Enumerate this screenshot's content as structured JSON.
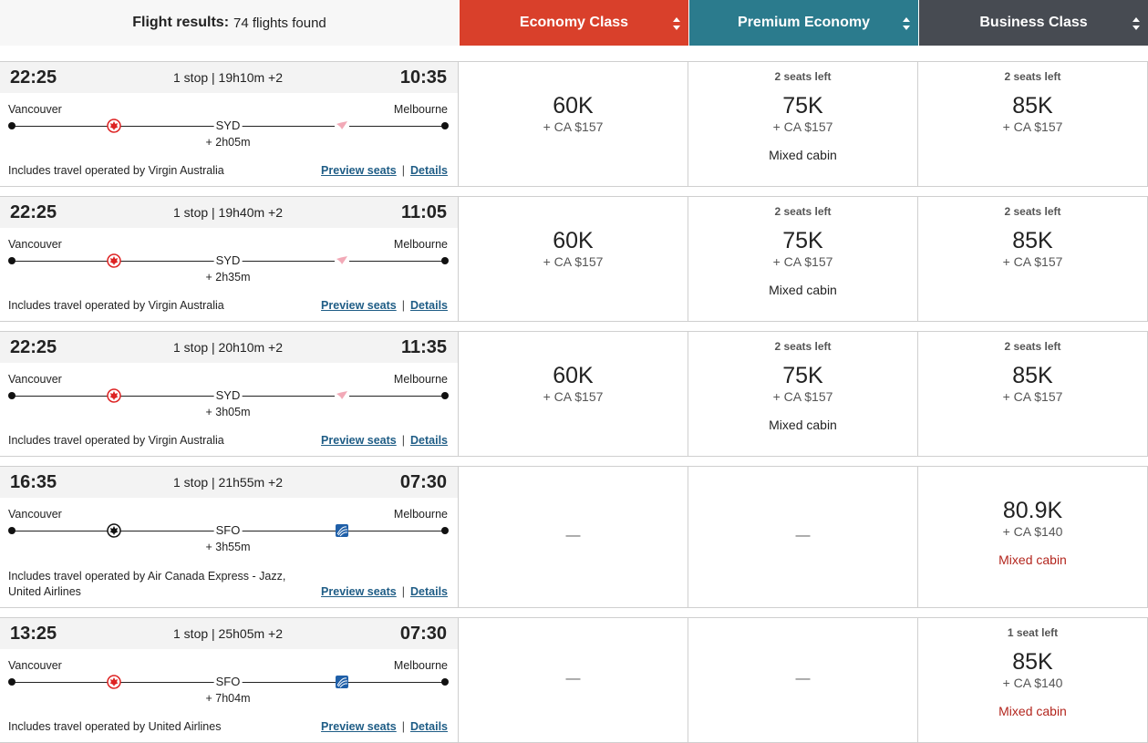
{
  "header": {
    "label": "Flight results:",
    "count": "74 flights found",
    "columns": [
      "Economy Class",
      "Premium Economy",
      "Business Class"
    ]
  },
  "link_separator": "|",
  "flights": [
    {
      "depart": "22:25",
      "stops": "1 stop | 19h10m +2",
      "arrive": "10:35",
      "origin": "Vancouver",
      "destination": "Melbourne",
      "via": "SYD",
      "layover": "+ 2h05m",
      "operated": "Includes travel operated by Virgin Australia",
      "preview": "Preview seats",
      "details": "Details",
      "fares": [
        {
          "points": "60K",
          "tax": "+ CA $157"
        },
        {
          "seats": "2 seats left",
          "points": "75K",
          "tax": "+ CA $157",
          "note": "Mixed cabin"
        },
        {
          "seats": "2 seats left",
          "points": "85K",
          "tax": "+ CA $157"
        }
      ]
    },
    {
      "depart": "22:25",
      "stops": "1 stop | 19h40m +2",
      "arrive": "11:05",
      "origin": "Vancouver",
      "destination": "Melbourne",
      "via": "SYD",
      "layover": "+ 2h35m",
      "operated": "Includes travel operated by Virgin Australia",
      "preview": "Preview seats",
      "details": "Details",
      "fares": [
        {
          "points": "60K",
          "tax": "+ CA $157"
        },
        {
          "seats": "2 seats left",
          "points": "75K",
          "tax": "+ CA $157",
          "note": "Mixed cabin"
        },
        {
          "seats": "2 seats left",
          "points": "85K",
          "tax": "+ CA $157"
        }
      ]
    },
    {
      "depart": "22:25",
      "stops": "1 stop | 20h10m +2",
      "arrive": "11:35",
      "origin": "Vancouver",
      "destination": "Melbourne",
      "via": "SYD",
      "layover": "+ 3h05m",
      "operated": "Includes travel operated by Virgin Australia",
      "preview": "Preview seats",
      "details": "Details",
      "fares": [
        {
          "points": "60K",
          "tax": "+ CA $157"
        },
        {
          "seats": "2 seats left",
          "points": "75K",
          "tax": "+ CA $157",
          "note": "Mixed cabin"
        },
        {
          "seats": "2 seats left",
          "points": "85K",
          "tax": "+ CA $157"
        }
      ]
    },
    {
      "depart": "16:35",
      "stops": "1 stop | 21h55m +2",
      "arrive": "07:30",
      "origin": "Vancouver",
      "destination": "Melbourne",
      "via": "SFO",
      "layover": "+ 3h55m",
      "operated": "Includes travel operated by Air Canada Express - Jazz, United Airlines",
      "preview": "Preview seats",
      "details": "Details",
      "fares": [
        {
          "dash": "—"
        },
        {
          "dash": "—"
        },
        {
          "points": "80.9K",
          "tax": "+ CA $140",
          "note": "Mixed cabin",
          "note_color": "#b3261e"
        }
      ]
    },
    {
      "depart": "13:25",
      "stops": "1 stop | 25h05m +2",
      "arrive": "07:30",
      "origin": "Vancouver",
      "destination": "Melbourne",
      "via": "SFO",
      "layover": "+ 7h04m",
      "operated": "Includes travel operated by United Airlines",
      "preview": "Preview seats",
      "details": "Details",
      "fares": [
        {
          "dash": "—"
        },
        {
          "dash": "—"
        },
        {
          "seats": "1 seat left",
          "points": "85K",
          "tax": "+ CA $140",
          "note": "Mixed cabin",
          "note_color": "#b3261e"
        }
      ]
    }
  ]
}
